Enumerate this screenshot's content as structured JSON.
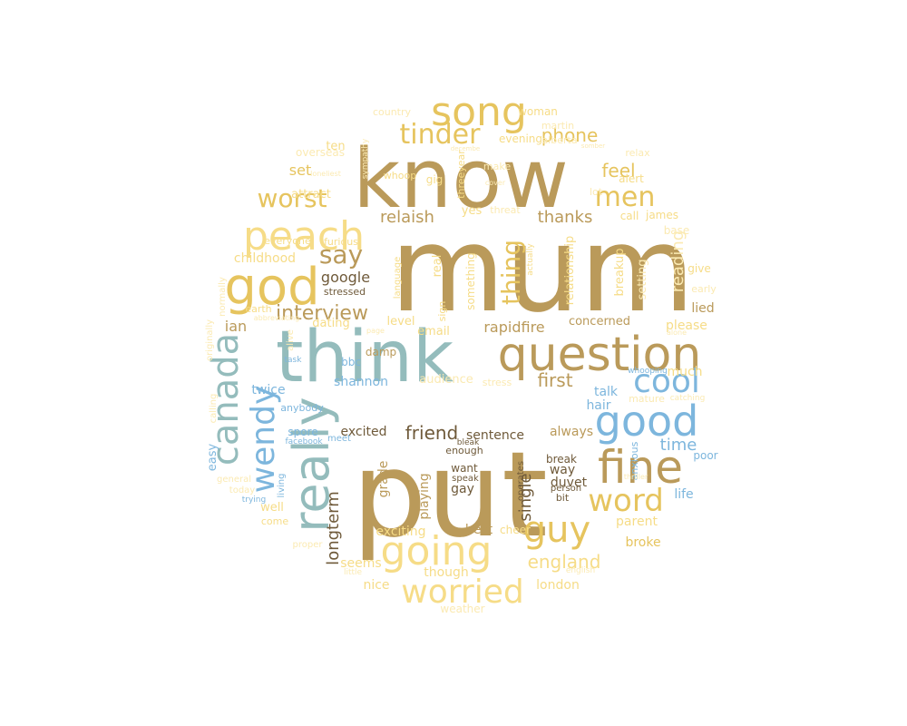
{
  "colors": {
    "gold": "#BA9A5A",
    "yellow": "#E6C45E",
    "light": "#F6DC87",
    "pale": "#FBEAB2",
    "teal": "#94BCBC",
    "blue": "#7DB6DD",
    "brown": "#6F5A3A"
  },
  "words": [
    {
      "text": "mum",
      "color": "gold"
    },
    {
      "text": "put",
      "color": "gold"
    },
    {
      "text": "know",
      "color": "gold"
    },
    {
      "text": "think",
      "color": "teal"
    },
    {
      "text": "question",
      "color": "gold"
    },
    {
      "text": "peach",
      "color": "light"
    },
    {
      "text": "god",
      "color": "yellow"
    },
    {
      "text": "song",
      "color": "yellow"
    },
    {
      "text": "good",
      "color": "blue"
    },
    {
      "text": "fine",
      "color": "gold"
    },
    {
      "text": "going",
      "color": "light"
    },
    {
      "text": "really",
      "color": "teal"
    },
    {
      "text": "canada",
      "color": "teal"
    },
    {
      "text": "wendy",
      "color": "blue"
    },
    {
      "text": "cool",
      "color": "blue"
    },
    {
      "text": "worried",
      "color": "light"
    },
    {
      "text": "word",
      "color": "yellow"
    },
    {
      "text": "guy",
      "color": "yellow"
    },
    {
      "text": "tinder",
      "color": "yellow"
    },
    {
      "text": "worst",
      "color": "yellow"
    },
    {
      "text": "men",
      "color": "yellow"
    },
    {
      "text": "say",
      "color": "gold"
    },
    {
      "text": "thing",
      "color": "yellow"
    },
    {
      "text": "interview",
      "color": "gold"
    },
    {
      "text": "phone",
      "color": "yellow"
    },
    {
      "text": "feel",
      "color": "yellow"
    },
    {
      "text": "relaish",
      "color": "gold"
    },
    {
      "text": "thanks",
      "color": "gold"
    },
    {
      "text": "england",
      "color": "light"
    },
    {
      "text": "time",
      "color": "blue"
    },
    {
      "text": "friend",
      "color": "brown"
    },
    {
      "text": "first",
      "color": "gold"
    },
    {
      "text": "longterm",
      "color": "brown"
    },
    {
      "text": "single",
      "color": "brown"
    },
    {
      "text": "reading",
      "color": "pale"
    },
    {
      "text": "set",
      "color": "yellow"
    },
    {
      "text": "ian",
      "color": "gold"
    },
    {
      "text": "google",
      "color": "brown"
    },
    {
      "text": "rapidfire",
      "color": "gold"
    },
    {
      "text": "shannon",
      "color": "blue"
    },
    {
      "text": "twice",
      "color": "blue"
    },
    {
      "text": "excited",
      "color": "brown"
    },
    {
      "text": "sentence",
      "color": "brown"
    },
    {
      "text": "duvet",
      "color": "brown"
    },
    {
      "text": "always",
      "color": "gold"
    },
    {
      "text": "talk",
      "color": "blue"
    },
    {
      "text": "hair",
      "color": "blue"
    },
    {
      "text": "exciting",
      "color": "light"
    },
    {
      "text": "playing",
      "color": "gold"
    },
    {
      "text": "grade",
      "color": "gold"
    },
    {
      "text": "seems",
      "color": "light"
    },
    {
      "text": "though",
      "color": "light"
    },
    {
      "text": "nice",
      "color": "light"
    },
    {
      "text": "london",
      "color": "light"
    },
    {
      "text": "parent",
      "color": "light"
    },
    {
      "text": "broke",
      "color": "yellow"
    },
    {
      "text": "life",
      "color": "blue"
    },
    {
      "text": "best",
      "color": "gold"
    },
    {
      "text": "way",
      "color": "brown"
    },
    {
      "text": "break",
      "color": "brown"
    },
    {
      "text": "want",
      "color": "brown"
    },
    {
      "text": "gay",
      "color": "brown"
    },
    {
      "text": "spore",
      "color": "blue"
    },
    {
      "text": "anybody",
      "color": "blue"
    },
    {
      "text": "email",
      "color": "light"
    },
    {
      "text": "level",
      "color": "light"
    },
    {
      "text": "dating",
      "color": "light"
    },
    {
      "text": "stressed",
      "color": "brown"
    },
    {
      "text": "childhood",
      "color": "light"
    },
    {
      "text": "concerned",
      "color": "gold"
    },
    {
      "text": "please",
      "color": "light"
    },
    {
      "text": "much",
      "color": "light"
    },
    {
      "text": "setting",
      "color": "pale"
    },
    {
      "text": "breakup",
      "color": "light"
    },
    {
      "text": "relationship",
      "color": "light"
    },
    {
      "text": "lied",
      "color": "gold"
    },
    {
      "text": "early",
      "color": "pale"
    },
    {
      "text": "give",
      "color": "light"
    },
    {
      "text": "base",
      "color": "pale"
    },
    {
      "text": "call",
      "color": "light"
    },
    {
      "text": "james",
      "color": "light"
    },
    {
      "text": "lot",
      "color": "pale"
    },
    {
      "text": "alert",
      "color": "light"
    },
    {
      "text": "relax",
      "color": "pale"
    },
    {
      "text": "evening",
      "color": "light"
    },
    {
      "text": "woman",
      "color": "light"
    },
    {
      "text": "martin",
      "color": "pale"
    },
    {
      "text": "alberta",
      "color": "pale"
    },
    {
      "text": "attract",
      "color": "light"
    },
    {
      "text": "overseas",
      "color": "pale"
    },
    {
      "text": "ten",
      "color": "light"
    },
    {
      "text": "gig",
      "color": "light"
    },
    {
      "text": "yes",
      "color": "light"
    },
    {
      "text": "threat",
      "color": "pale"
    },
    {
      "text": "whoop",
      "color": "light"
    },
    {
      "text": "make",
      "color": "pale"
    },
    {
      "text": "country",
      "color": "pale"
    },
    {
      "text": "everyone",
      "color": "light"
    },
    {
      "text": "furious",
      "color": "light"
    },
    {
      "text": "earth",
      "color": "light"
    },
    {
      "text": "normally",
      "color": "pale"
    },
    {
      "text": "originally",
      "color": "pale"
    },
    {
      "text": "alive",
      "color": "pale"
    },
    {
      "text": "damp",
      "color": "gold"
    },
    {
      "text": "bbc",
      "color": "blue"
    },
    {
      "text": "task",
      "color": "blue"
    },
    {
      "text": "audience",
      "color": "pale"
    },
    {
      "text": "stress",
      "color": "pale"
    },
    {
      "text": "mature",
      "color": "pale"
    },
    {
      "text": "catching",
      "color": "pale"
    },
    {
      "text": "whooping",
      "color": "blue"
    },
    {
      "text": "poor",
      "color": "blue"
    },
    {
      "text": "anxious",
      "color": "blue"
    },
    {
      "text": "easy",
      "color": "blue"
    },
    {
      "text": "calling",
      "color": "pale"
    },
    {
      "text": "facebook",
      "color": "blue"
    },
    {
      "text": "meet",
      "color": "blue"
    },
    {
      "text": "general",
      "color": "pale"
    },
    {
      "text": "today",
      "color": "pale"
    },
    {
      "text": "trying",
      "color": "blue"
    },
    {
      "text": "living",
      "color": "blue"
    },
    {
      "text": "well",
      "color": "light"
    },
    {
      "text": "come",
      "color": "light"
    },
    {
      "text": "enough",
      "color": "brown"
    },
    {
      "text": "speak",
      "color": "brown"
    },
    {
      "text": "bleak",
      "color": "brown"
    },
    {
      "text": "person",
      "color": "brown"
    },
    {
      "text": "bit",
      "color": "brown"
    },
    {
      "text": "cheer",
      "color": "light"
    },
    {
      "text": "operates",
      "color": "brown"
    },
    {
      "text": "english",
      "color": "pale"
    },
    {
      "text": "little",
      "color": "pale"
    },
    {
      "text": "weather",
      "color": "pale"
    },
    {
      "text": "something",
      "color": "light"
    },
    {
      "text": "language",
      "color": "light"
    },
    {
      "text": "real",
      "color": "light"
    },
    {
      "text": "sign",
      "color": "light"
    },
    {
      "text": "actually",
      "color": "light"
    },
    {
      "text": "abbreviating",
      "color": "pale"
    },
    {
      "text": "page",
      "color": "pale"
    },
    {
      "text": "loneliest",
      "color": "pale"
    },
    {
      "text": "threeyear",
      "color": "light"
    },
    {
      "text": "sympathy",
      "color": "pale"
    },
    {
      "text": "cover",
      "color": "pale"
    },
    {
      "text": "alone",
      "color": "pale"
    },
    {
      "text": "thriller",
      "color": "pale"
    },
    {
      "text": "proper",
      "color": "pale"
    },
    {
      "text": "decembe",
      "color": "pale"
    },
    {
      "text": "somber",
      "color": "pale"
    }
  ]
}
